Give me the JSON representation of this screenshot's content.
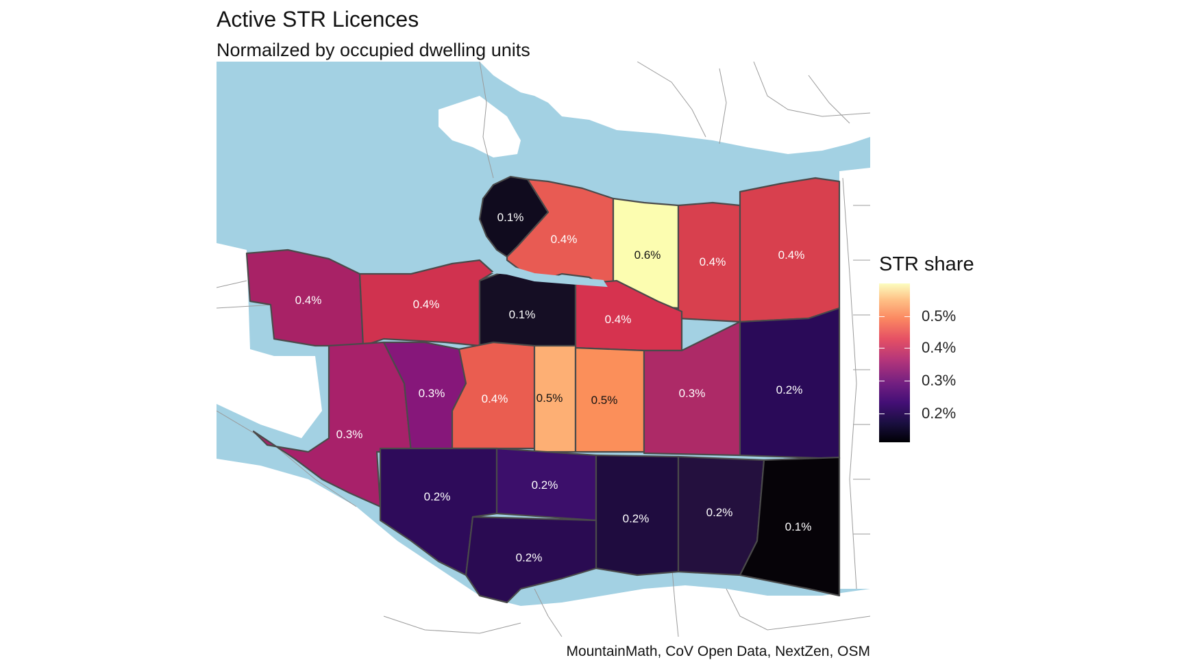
{
  "title": "Active STR Licences",
  "subtitle": "Normailzed by occupied dwelling units",
  "caption": "MountainMath, CoV Open Data, NextZen, OSM",
  "legend": {
    "title": "STR share",
    "labels": [
      "0.5%",
      "0.4%",
      "0.3%",
      "0.2%"
    ]
  },
  "colors": {
    "water": "#a3d1e3",
    "land": "#ffffff",
    "road": "#9a9a9a",
    "border": "#4a4a4a"
  },
  "neighbourhoods": [
    {
      "label": "0.1%",
      "value": 0.1,
      "fill": "#100b1e"
    },
    {
      "label": "0.4%",
      "value": 0.4,
      "fill": "#e85b53"
    },
    {
      "label": "0.6%",
      "value": 0.6,
      "fill": "#fcfdb0"
    },
    {
      "label": "0.4%",
      "value": 0.4,
      "fill": "#d8404e"
    },
    {
      "label": "0.4%",
      "value": 0.4,
      "fill": "#d8404e"
    },
    {
      "label": "0.4%",
      "value": 0.4,
      "fill": "#a82266"
    },
    {
      "label": "0.4%",
      "value": 0.4,
      "fill": "#d0324f"
    },
    {
      "label": "0.1%",
      "value": 0.1,
      "fill": "#150e24"
    },
    {
      "label": "0.4%",
      "value": 0.4,
      "fill": "#d6334f"
    },
    {
      "label": "0.3%",
      "value": 0.3,
      "fill": "#a8216a"
    },
    {
      "label": "0.3%",
      "value": 0.3,
      "fill": "#86177a"
    },
    {
      "label": "0.4%",
      "value": 0.4,
      "fill": "#ea5d50"
    },
    {
      "label": "0.5%",
      "value": 0.5,
      "fill": "#fdaf74"
    },
    {
      "label": "0.5%",
      "value": 0.5,
      "fill": "#fb8f5a"
    },
    {
      "label": "0.3%",
      "value": 0.3,
      "fill": "#ad2a67"
    },
    {
      "label": "0.2%",
      "value": 0.2,
      "fill": "#2a0a58"
    },
    {
      "label": "0.2%",
      "value": 0.2,
      "fill": "#2e0b5a"
    },
    {
      "label": "0.2%",
      "value": 0.2,
      "fill": "#3c0f6b"
    },
    {
      "label": "0.2%",
      "value": 0.2,
      "fill": "#1f0c3f"
    },
    {
      "label": "0.2%",
      "value": 0.2,
      "fill": "#24103e"
    },
    {
      "label": "0.1%",
      "value": 0.1,
      "fill": "#060308"
    },
    {
      "label": "0.2%",
      "value": 0.2,
      "fill": "#2a0b52"
    }
  ]
}
